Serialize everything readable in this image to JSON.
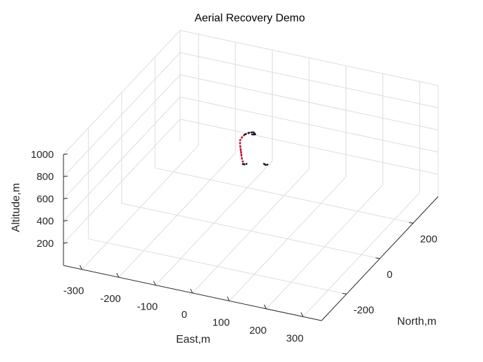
{
  "chart_data": {
    "type": "scatter3d",
    "title": "Aerial Recovery Demo",
    "xlabel": "East,m",
    "ylabel": "North,m",
    "zlabel": "Altitude,m",
    "xlim": [
      -350,
      350
    ],
    "ylim": [
      -350,
      350
    ],
    "zlim": [
      0,
      1000
    ],
    "x_ticks": [
      -300,
      -200,
      -100,
      0,
      100,
      200,
      300
    ],
    "y_ticks": [
      -200,
      0,
      200
    ],
    "z_ticks": [
      200,
      400,
      600,
      800,
      1000
    ],
    "grid": true,
    "colors": {
      "axis": "#262626",
      "grid": "#dcdcdc",
      "path_red": "#c8102e",
      "path_dark": "#101025"
    },
    "series": [
      {
        "color": "#c8102e",
        "points": [
          [
            -30,
            30,
            800
          ],
          [
            -35,
            25,
            780
          ],
          [
            -38,
            20,
            760
          ],
          [
            -36,
            15,
            740
          ],
          [
            -32,
            8,
            720
          ],
          [
            -28,
            2,
            700
          ],
          [
            -24,
            -4,
            680
          ],
          [
            -20,
            -10,
            660
          ],
          [
            -15,
            -15,
            640
          ],
          [
            -10,
            -18,
            625
          ]
        ]
      },
      {
        "color": "#101025",
        "points": [
          [
            -30,
            30,
            800
          ],
          [
            -20,
            35,
            815
          ],
          [
            -10,
            38,
            822
          ],
          [
            -4,
            36,
            810
          ],
          [
            -12,
            34,
            806
          ]
        ]
      },
      {
        "color": "#101025",
        "points": [
          [
            -14,
            -18,
            622
          ],
          [
            -8,
            -20,
            626
          ],
          [
            -4,
            -16,
            628
          ]
        ]
      },
      {
        "color": "#101025",
        "points": [
          [
            40,
            -10,
            650
          ],
          [
            46,
            -12,
            646
          ],
          [
            50,
            -10,
            650
          ]
        ]
      }
    ]
  }
}
